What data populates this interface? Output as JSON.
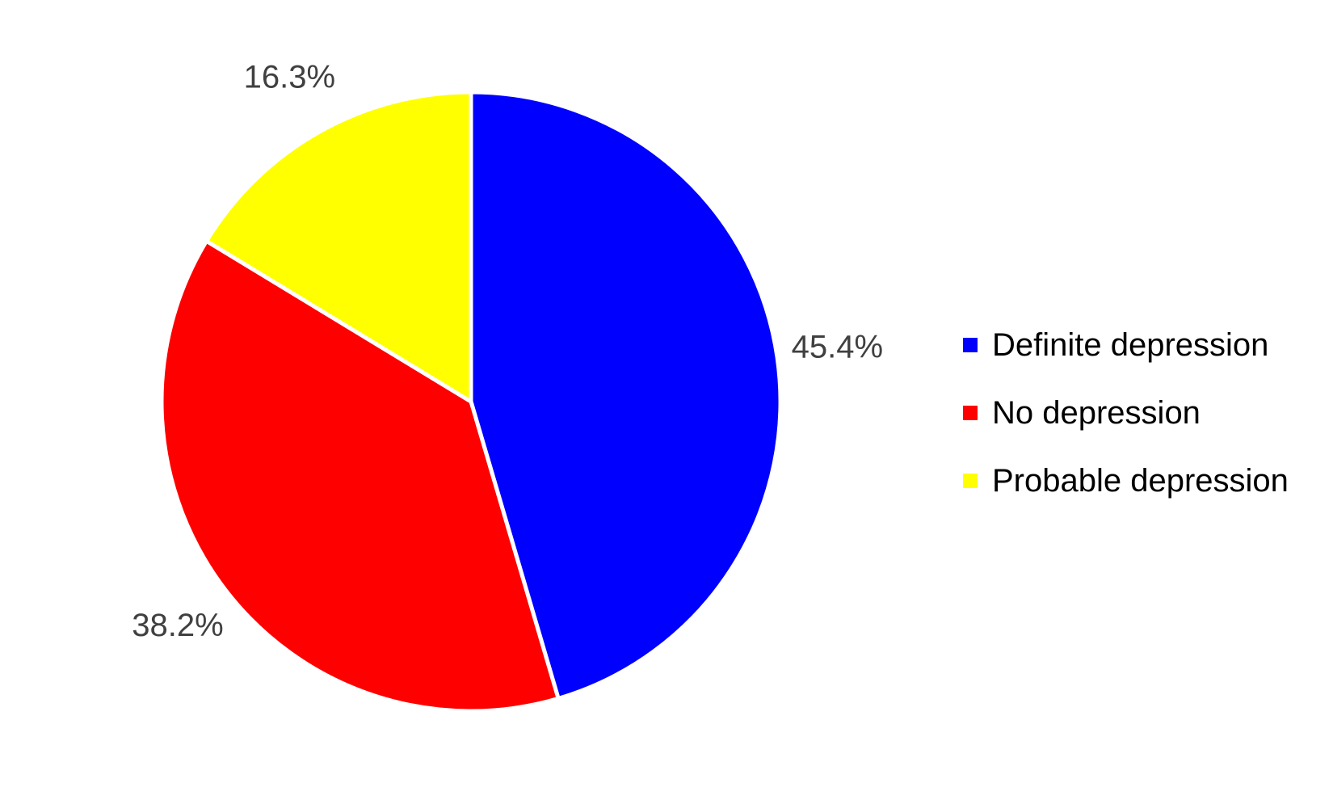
{
  "chart_data": {
    "type": "pie",
    "title": "",
    "slices": [
      {
        "label": "Definite depression",
        "value": 45.4,
        "display": "45.4%",
        "color": "#0000FF"
      },
      {
        "label": "No depression",
        "value": 38.2,
        "display": "38.2%",
        "color": "#FF0000"
      },
      {
        "label": "Probable depression",
        "value": 16.3,
        "display": "16.3%",
        "color": "#FFFF00"
      }
    ],
    "start_angle_deg": 0,
    "direction": "clockwise",
    "slice_border_color": "#FFFFFF",
    "legend_position": "right"
  }
}
